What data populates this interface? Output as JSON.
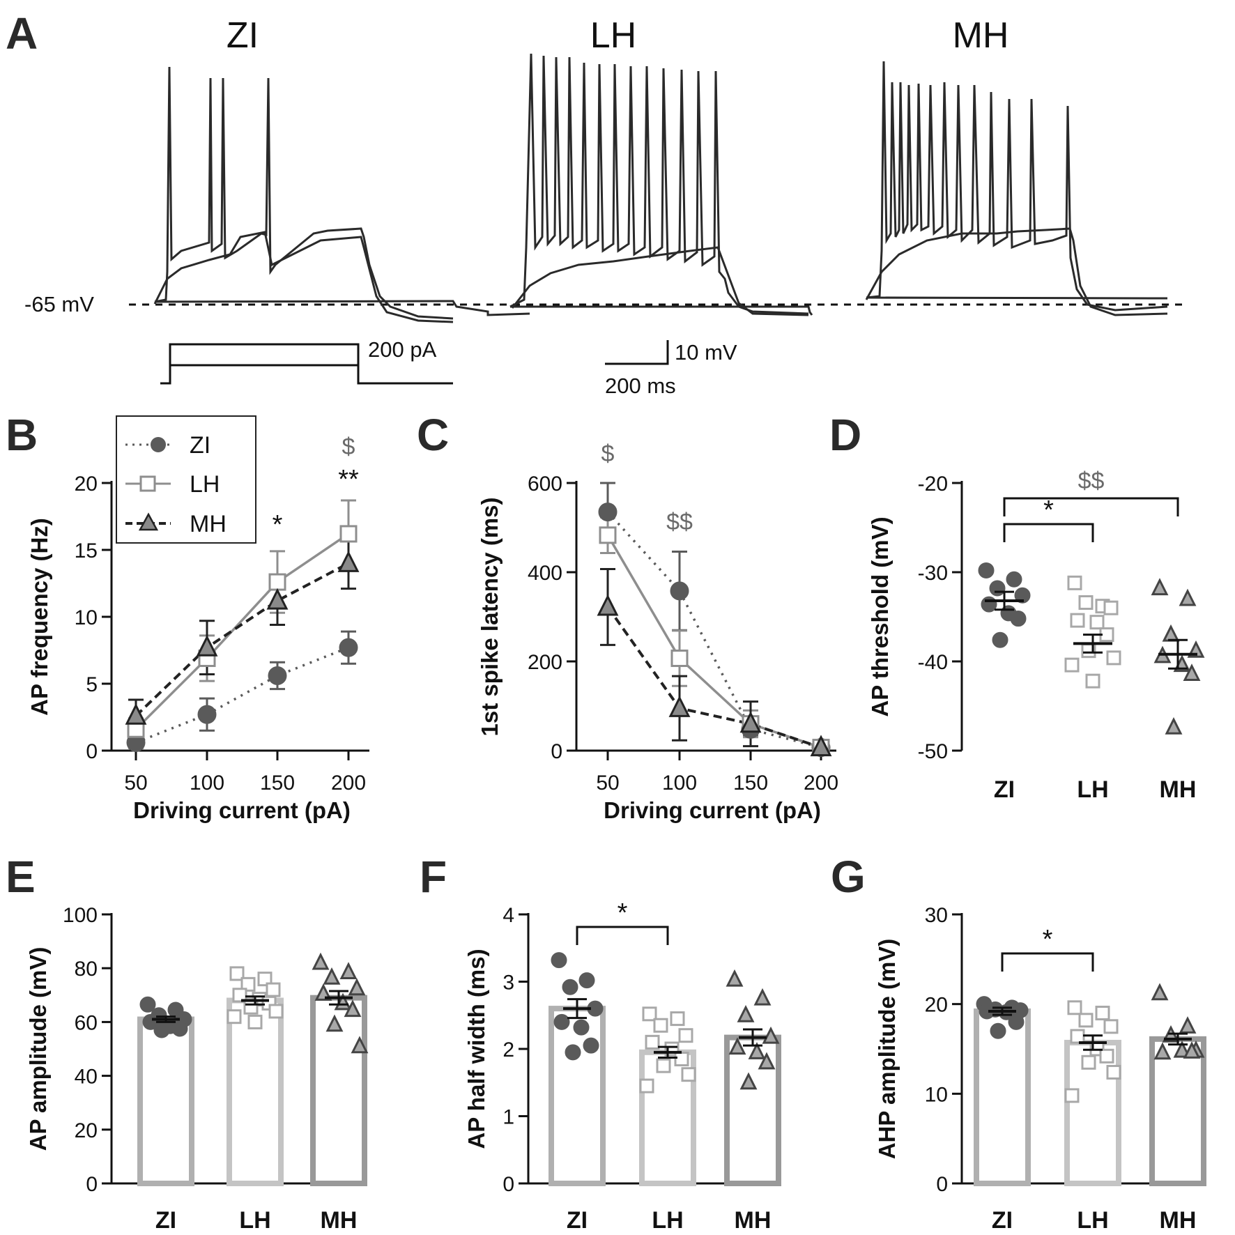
{
  "figure": {
    "panels": [
      "A",
      "B",
      "C",
      "D",
      "E",
      "F",
      "G"
    ]
  },
  "panel_a": {
    "titles": [
      "ZI",
      "LH",
      "MH"
    ],
    "baseline_label": "-65 mV",
    "current_step_label": "200 pA",
    "scale_voltage": "10 mV",
    "scale_time": "200 ms"
  },
  "colors": {
    "ZI": "#5a5a5a",
    "LH": "#8e8e8e",
    "MH": "#222222",
    "bar_ZI": "#b0b0b0",
    "bar_LH": "#c4c4c4",
    "bar_MH": "#999999",
    "sig_grey": "#6a6a6a"
  },
  "legend": [
    {
      "name": "ZI",
      "marker": "circle"
    },
    {
      "name": "LH",
      "marker": "square"
    },
    {
      "name": "MH",
      "marker": "triangle"
    }
  ],
  "chart_data": [
    {
      "id": "B",
      "type": "line",
      "xlabel": "Driving current (pA)",
      "ylabel": "AP frequency (Hz)",
      "x": [
        50,
        100,
        150,
        200
      ],
      "ylim": [
        0,
        20
      ],
      "yticks": [
        0,
        5,
        10,
        15,
        20
      ],
      "series": [
        {
          "name": "ZI",
          "values": [
            0.6,
            2.7,
            5.6,
            7.7
          ],
          "errors": [
            0.4,
            1.2,
            1.0,
            1.2
          ]
        },
        {
          "name": "LH",
          "values": [
            1.6,
            6.9,
            12.6,
            16.2
          ],
          "errors": [
            0.8,
            1.7,
            2.3,
            2.5
          ]
        },
        {
          "name": "MH",
          "values": [
            2.6,
            7.7,
            11.2,
            14.0
          ],
          "errors": [
            1.2,
            2.0,
            1.8,
            1.9
          ]
        }
      ],
      "annotations": [
        {
          "x": 150,
          "text": "*",
          "style": "black"
        },
        {
          "x": 200,
          "text": "**",
          "style": "black"
        },
        {
          "x": 200,
          "text": "$",
          "style": "grey"
        }
      ]
    },
    {
      "id": "C",
      "type": "line",
      "xlabel": "Driving current (pA)",
      "ylabel": "1st spike latency (ms)",
      "x": [
        50,
        100,
        150,
        200
      ],
      "ylim": [
        0,
        600
      ],
      "yticks": [
        0,
        200,
        400,
        600
      ],
      "series": [
        {
          "name": "ZI",
          "values": [
            535,
            358,
            48,
            7
          ],
          "errors": [
            65,
            88,
            15,
            5
          ]
        },
        {
          "name": "LH",
          "values": [
            483,
            207,
            60,
            7
          ],
          "errors": [
            40,
            62,
            30,
            5
          ]
        },
        {
          "name": "MH",
          "values": [
            322,
            95,
            60,
            7
          ],
          "errors": [
            85,
            72,
            50,
            5
          ]
        }
      ],
      "annotations": [
        {
          "x": 50,
          "text": "$",
          "style": "grey"
        },
        {
          "x": 100,
          "text": "$$",
          "style": "grey"
        }
      ]
    },
    {
      "id": "D",
      "type": "scatter",
      "ylabel": "AP threshold (mV)",
      "categories": [
        "ZI",
        "LH",
        "MH"
      ],
      "ylim": [
        -50,
        -20
      ],
      "yticks": [
        -50,
        -40,
        -30,
        -20
      ],
      "means": [
        -33.2,
        -38.0,
        -39.2
      ],
      "sems": [
        1.0,
        1.0,
        1.6
      ],
      "points": [
        [
          -29.8,
          -30.8,
          -31.8,
          -32.6,
          -33.6,
          -34.6,
          -35.2,
          -37.6
        ],
        [
          -31.2,
          -33.8,
          -33.4,
          -34.0,
          -35.4,
          -35.6,
          -37.0,
          -38.8,
          -39.6,
          -40.4,
          -42.2
        ],
        [
          -31.8,
          -33.0,
          -37.0,
          -38.8,
          -39.4,
          -40.4,
          -41.4,
          -47.4
        ]
      ],
      "brackets": [
        {
          "from": "ZI",
          "to": "LH",
          "text": "*",
          "style": "black"
        },
        {
          "from": "ZI",
          "to": "MH",
          "text": "$$",
          "style": "grey"
        }
      ]
    },
    {
      "id": "E",
      "type": "bar",
      "ylabel": "AP amplitude (mV)",
      "categories": [
        "ZI",
        "LH",
        "MH"
      ],
      "ylim": [
        0,
        100
      ],
      "yticks": [
        0,
        20,
        40,
        60,
        80,
        100
      ],
      "values": [
        61,
        68,
        69
      ],
      "sems": [
        1.0,
        1.5,
        2.5
      ],
      "points": [
        [
          66.5,
          64.5,
          62.5,
          61,
          60,
          58.5,
          57.5,
          57
        ],
        [
          78,
          76,
          74,
          72,
          70,
          68.5,
          67,
          65.5,
          64,
          62,
          60
        ],
        [
          82,
          78.5,
          76.5,
          72.5,
          70.5,
          67,
          64.5,
          59,
          51
        ]
      ],
      "brackets": []
    },
    {
      "id": "F",
      "type": "bar",
      "ylabel": "AP half width (ms)",
      "categories": [
        "ZI",
        "LH",
        "MH"
      ],
      "ylim": [
        0,
        4
      ],
      "yticks": [
        0,
        1,
        2,
        3,
        4
      ],
      "values": [
        2.6,
        1.95,
        2.17
      ],
      "sems": [
        0.14,
        0.08,
        0.12
      ],
      "points": [
        [
          3.32,
          3.02,
          2.92,
          2.6,
          2.4,
          2.32,
          2.05,
          1.95
        ],
        [
          2.52,
          2.45,
          2.35,
          2.2,
          2.1,
          2.0,
          1.85,
          1.75,
          1.62,
          1.45
        ],
        [
          3.03,
          2.75,
          2.5,
          2.18,
          2.02,
          1.95,
          1.8,
          1.5
        ]
      ],
      "brackets": [
        {
          "from": "ZI",
          "to": "LH",
          "text": "*",
          "style": "black"
        }
      ]
    },
    {
      "id": "G",
      "type": "bar",
      "ylabel": "AHP amplitude (mV)",
      "categories": [
        "ZI",
        "LH",
        "MH"
      ],
      "ylim": [
        0,
        30
      ],
      "yticks": [
        0,
        10,
        20,
        30
      ],
      "values": [
        19.2,
        15.7,
        16.1
      ],
      "sems": [
        0.4,
        0.8,
        0.6
      ],
      "points": [
        [
          20.0,
          19.6,
          19.4,
          19.3,
          19.2,
          19.1,
          18.0,
          17.0
        ],
        [
          19.6,
          19.0,
          18.2,
          17.5,
          16.4,
          15.0,
          14.2,
          13.5,
          12.4,
          9.8
        ],
        [
          21.2,
          17.5,
          16.5,
          14.8,
          14.6,
          14.8,
          14.7
        ]
      ],
      "brackets": [
        {
          "from": "ZI",
          "to": "LH",
          "text": "*",
          "style": "black"
        }
      ]
    }
  ]
}
